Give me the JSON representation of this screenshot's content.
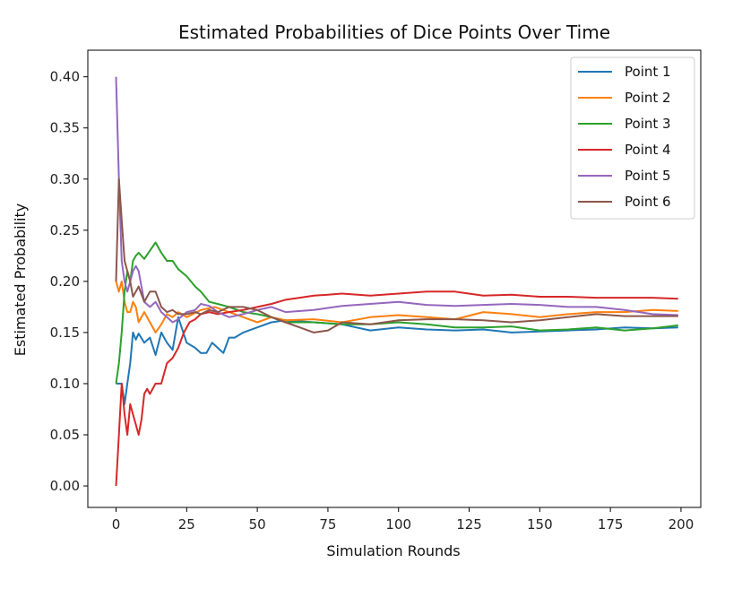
{
  "chart_data": {
    "type": "line",
    "title": "Estimated Probabilities of Dice Points Over Time",
    "xlabel": "Simulation Rounds",
    "ylabel": "Estimated Probability",
    "xlim": [
      -10,
      207
    ],
    "ylim": [
      -0.021,
      0.426
    ],
    "xticks": [
      0,
      25,
      50,
      75,
      100,
      125,
      150,
      175,
      200
    ],
    "yticks": [
      0.0,
      0.05,
      0.1,
      0.15,
      0.2,
      0.25,
      0.3,
      0.35,
      0.4
    ],
    "ytick_labels": [
      "0.00",
      "0.05",
      "0.10",
      "0.15",
      "0.20",
      "0.25",
      "0.30",
      "0.35",
      "0.40"
    ],
    "xtick_labels": [
      "0",
      "25",
      "50",
      "75",
      "100",
      "125",
      "150",
      "175",
      "200"
    ],
    "grid": false,
    "legend_position": "top-right",
    "series": [
      {
        "name": "Point 1",
        "color": "#1f77b4",
        "points": [
          [
            0,
            0.1
          ],
          [
            1,
            0.1
          ],
          [
            2,
            0.1
          ],
          [
            3,
            0.08
          ],
          [
            4,
            0.1
          ],
          [
            5,
            0.12
          ],
          [
            6,
            0.15
          ],
          [
            7,
            0.143
          ],
          [
            8,
            0.149
          ],
          [
            10,
            0.14
          ],
          [
            12,
            0.145
          ],
          [
            14,
            0.128
          ],
          [
            16,
            0.15
          ],
          [
            18,
            0.14
          ],
          [
            20,
            0.133
          ],
          [
            22,
            0.165
          ],
          [
            25,
            0.14
          ],
          [
            28,
            0.135
          ],
          [
            30,
            0.13
          ],
          [
            32,
            0.13
          ],
          [
            34,
            0.14
          ],
          [
            36,
            0.135
          ],
          [
            38,
            0.13
          ],
          [
            40,
            0.145
          ],
          [
            42,
            0.145
          ],
          [
            45,
            0.15
          ],
          [
            50,
            0.155
          ],
          [
            55,
            0.16
          ],
          [
            60,
            0.162
          ],
          [
            70,
            0.16
          ],
          [
            80,
            0.158
          ],
          [
            90,
            0.152
          ],
          [
            100,
            0.155
          ],
          [
            110,
            0.153
          ],
          [
            120,
            0.152
          ],
          [
            130,
            0.153
          ],
          [
            140,
            0.15
          ],
          [
            150,
            0.151
          ],
          [
            160,
            0.152
          ],
          [
            170,
            0.153
          ],
          [
            180,
            0.155
          ],
          [
            190,
            0.154
          ],
          [
            199,
            0.155
          ]
        ]
      },
      {
        "name": "Point 2",
        "color": "#ff7f0e",
        "points": [
          [
            0,
            0.2
          ],
          [
            1,
            0.19
          ],
          [
            2,
            0.2
          ],
          [
            3,
            0.18
          ],
          [
            4,
            0.17
          ],
          [
            5,
            0.17
          ],
          [
            6,
            0.18
          ],
          [
            7,
            0.175
          ],
          [
            8,
            0.16
          ],
          [
            10,
            0.17
          ],
          [
            12,
            0.16
          ],
          [
            14,
            0.15
          ],
          [
            16,
            0.158
          ],
          [
            18,
            0.168
          ],
          [
            20,
            0.165
          ],
          [
            22,
            0.17
          ],
          [
            25,
            0.165
          ],
          [
            30,
            0.172
          ],
          [
            35,
            0.175
          ],
          [
            40,
            0.17
          ],
          [
            45,
            0.165
          ],
          [
            50,
            0.16
          ],
          [
            55,
            0.165
          ],
          [
            60,
            0.162
          ],
          [
            70,
            0.163
          ],
          [
            80,
            0.16
          ],
          [
            90,
            0.165
          ],
          [
            100,
            0.167
          ],
          [
            110,
            0.165
          ],
          [
            120,
            0.163
          ],
          [
            130,
            0.17
          ],
          [
            140,
            0.168
          ],
          [
            150,
            0.165
          ],
          [
            160,
            0.168
          ],
          [
            170,
            0.17
          ],
          [
            180,
            0.17
          ],
          [
            190,
            0.172
          ],
          [
            199,
            0.171
          ]
        ]
      },
      {
        "name": "Point 3",
        "color": "#2ca02c",
        "points": [
          [
            0,
            0.1
          ],
          [
            1,
            0.12
          ],
          [
            2,
            0.15
          ],
          [
            3,
            0.19
          ],
          [
            4,
            0.21
          ],
          [
            5,
            0.2
          ],
          [
            6,
            0.22
          ],
          [
            7,
            0.225
          ],
          [
            8,
            0.228
          ],
          [
            10,
            0.222
          ],
          [
            12,
            0.23
          ],
          [
            14,
            0.238
          ],
          [
            16,
            0.228
          ],
          [
            18,
            0.22
          ],
          [
            20,
            0.22
          ],
          [
            22,
            0.212
          ],
          [
            25,
            0.205
          ],
          [
            28,
            0.195
          ],
          [
            30,
            0.19
          ],
          [
            33,
            0.18
          ],
          [
            36,
            0.178
          ],
          [
            40,
            0.175
          ],
          [
            45,
            0.17
          ],
          [
            50,
            0.168
          ],
          [
            55,
            0.165
          ],
          [
            60,
            0.16
          ],
          [
            70,
            0.16
          ],
          [
            80,
            0.158
          ],
          [
            90,
            0.158
          ],
          [
            100,
            0.16
          ],
          [
            110,
            0.158
          ],
          [
            120,
            0.155
          ],
          [
            130,
            0.155
          ],
          [
            140,
            0.156
          ],
          [
            150,
            0.152
          ],
          [
            160,
            0.153
          ],
          [
            170,
            0.155
          ],
          [
            180,
            0.152
          ],
          [
            190,
            0.154
          ],
          [
            199,
            0.157
          ]
        ]
      },
      {
        "name": "Point 4",
        "color": "#d62728",
        "points": [
          [
            0,
            0.0
          ],
          [
            1,
            0.05
          ],
          [
            2,
            0.1
          ],
          [
            3,
            0.07
          ],
          [
            4,
            0.05
          ],
          [
            5,
            0.08
          ],
          [
            6,
            0.07
          ],
          [
            7,
            0.06
          ],
          [
            8,
            0.05
          ],
          [
            9,
            0.065
          ],
          [
            10,
            0.09
          ],
          [
            11,
            0.095
          ],
          [
            12,
            0.09
          ],
          [
            14,
            0.1
          ],
          [
            16,
            0.1
          ],
          [
            18,
            0.12
          ],
          [
            20,
            0.125
          ],
          [
            22,
            0.135
          ],
          [
            24,
            0.15
          ],
          [
            26,
            0.16
          ],
          [
            28,
            0.163
          ],
          [
            30,
            0.168
          ],
          [
            33,
            0.17
          ],
          [
            36,
            0.168
          ],
          [
            40,
            0.17
          ],
          [
            45,
            0.172
          ],
          [
            50,
            0.175
          ],
          [
            55,
            0.178
          ],
          [
            60,
            0.182
          ],
          [
            65,
            0.184
          ],
          [
            70,
            0.186
          ],
          [
            75,
            0.187
          ],
          [
            80,
            0.188
          ],
          [
            90,
            0.186
          ],
          [
            100,
            0.188
          ],
          [
            110,
            0.19
          ],
          [
            120,
            0.19
          ],
          [
            130,
            0.186
          ],
          [
            140,
            0.187
          ],
          [
            150,
            0.185
          ],
          [
            160,
            0.185
          ],
          [
            170,
            0.184
          ],
          [
            180,
            0.184
          ],
          [
            190,
            0.184
          ],
          [
            199,
            0.183
          ]
        ]
      },
      {
        "name": "Point 5",
        "color": "#9467bd",
        "points": [
          [
            0,
            0.4
          ],
          [
            1,
            0.3
          ],
          [
            2,
            0.22
          ],
          [
            3,
            0.2
          ],
          [
            4,
            0.19
          ],
          [
            5,
            0.2
          ],
          [
            6,
            0.21
          ],
          [
            7,
            0.215
          ],
          [
            8,
            0.21
          ],
          [
            10,
            0.18
          ],
          [
            12,
            0.175
          ],
          [
            14,
            0.18
          ],
          [
            16,
            0.17
          ],
          [
            18,
            0.165
          ],
          [
            20,
            0.16
          ],
          [
            22,
            0.163
          ],
          [
            25,
            0.17
          ],
          [
            28,
            0.172
          ],
          [
            30,
            0.178
          ],
          [
            33,
            0.176
          ],
          [
            36,
            0.17
          ],
          [
            40,
            0.165
          ],
          [
            45,
            0.168
          ],
          [
            50,
            0.172
          ],
          [
            55,
            0.175
          ],
          [
            60,
            0.17
          ],
          [
            70,
            0.172
          ],
          [
            80,
            0.176
          ],
          [
            90,
            0.178
          ],
          [
            100,
            0.18
          ],
          [
            110,
            0.177
          ],
          [
            120,
            0.176
          ],
          [
            130,
            0.177
          ],
          [
            140,
            0.178
          ],
          [
            150,
            0.177
          ],
          [
            160,
            0.175
          ],
          [
            170,
            0.175
          ],
          [
            180,
            0.172
          ],
          [
            190,
            0.168
          ],
          [
            199,
            0.167
          ]
        ]
      },
      {
        "name": "Point 6",
        "color": "#8c564b",
        "points": [
          [
            0,
            0.2
          ],
          [
            1,
            0.3
          ],
          [
            2,
            0.26
          ],
          [
            3,
            0.22
          ],
          [
            4,
            0.21
          ],
          [
            5,
            0.2
          ],
          [
            6,
            0.185
          ],
          [
            7,
            0.19
          ],
          [
            8,
            0.195
          ],
          [
            10,
            0.18
          ],
          [
            12,
            0.19
          ],
          [
            14,
            0.19
          ],
          [
            16,
            0.175
          ],
          [
            18,
            0.17
          ],
          [
            20,
            0.172
          ],
          [
            22,
            0.168
          ],
          [
            25,
            0.168
          ],
          [
            28,
            0.17
          ],
          [
            30,
            0.168
          ],
          [
            33,
            0.172
          ],
          [
            36,
            0.17
          ],
          [
            40,
            0.175
          ],
          [
            45,
            0.175
          ],
          [
            50,
            0.172
          ],
          [
            55,
            0.165
          ],
          [
            60,
            0.16
          ],
          [
            65,
            0.155
          ],
          [
            70,
            0.15
          ],
          [
            75,
            0.152
          ],
          [
            80,
            0.16
          ],
          [
            90,
            0.158
          ],
          [
            100,
            0.162
          ],
          [
            110,
            0.163
          ],
          [
            120,
            0.163
          ],
          [
            130,
            0.162
          ],
          [
            140,
            0.16
          ],
          [
            150,
            0.162
          ],
          [
            160,
            0.165
          ],
          [
            170,
            0.168
          ],
          [
            180,
            0.166
          ],
          [
            190,
            0.166
          ],
          [
            199,
            0.166
          ]
        ]
      }
    ]
  }
}
